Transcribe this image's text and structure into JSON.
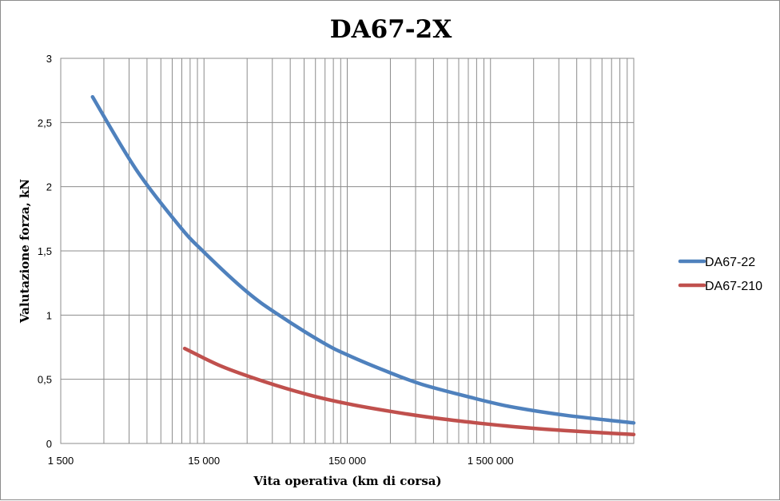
{
  "chart_data": {
    "type": "line",
    "title": "DA67-2X",
    "xlabel": "Vita operativa (km di corsa)",
    "ylabel": "Valutazione forza, kN",
    "x_scale": "log",
    "xlim": [
      1500,
      15000000
    ],
    "ylim": [
      0,
      3
    ],
    "x_ticks": [
      {
        "value": 1500,
        "label": "1 500"
      },
      {
        "value": 15000,
        "label": "15 000"
      },
      {
        "value": 150000,
        "label": "150 000"
      },
      {
        "value": 1500000,
        "label": "1 500 000"
      }
    ],
    "y_ticks": [
      {
        "value": 0,
        "label": "0"
      },
      {
        "value": 0.5,
        "label": "0,5"
      },
      {
        "value": 1,
        "label": "1"
      },
      {
        "value": 1.5,
        "label": "1,5"
      },
      {
        "value": 2,
        "label": "2"
      },
      {
        "value": 2.5,
        "label": "2,5"
      },
      {
        "value": 3,
        "label": "3"
      }
    ],
    "grid": true,
    "legend_position": "right",
    "series": [
      {
        "name": "DA67-22",
        "color": "#4f81bd",
        "x": [
          2500,
          5000,
          10000,
          15000,
          30000,
          50000,
          100000,
          150000,
          300000,
          500000,
          1000000,
          2000000,
          5000000,
          15000000
        ],
        "y": [
          2.7,
          2.14,
          1.7,
          1.49,
          1.18,
          1.0,
          0.79,
          0.69,
          0.55,
          0.46,
          0.37,
          0.29,
          0.22,
          0.16
        ]
      },
      {
        "name": "DA67-210",
        "color": "#c0504d",
        "x": [
          11000,
          20000,
          40000,
          80000,
          150000,
          300000,
          600000,
          1200000,
          2500000,
          5000000,
          15000000
        ],
        "y": [
          0.74,
          0.6,
          0.48,
          0.38,
          0.31,
          0.25,
          0.2,
          0.16,
          0.125,
          0.1,
          0.07
        ]
      }
    ]
  }
}
